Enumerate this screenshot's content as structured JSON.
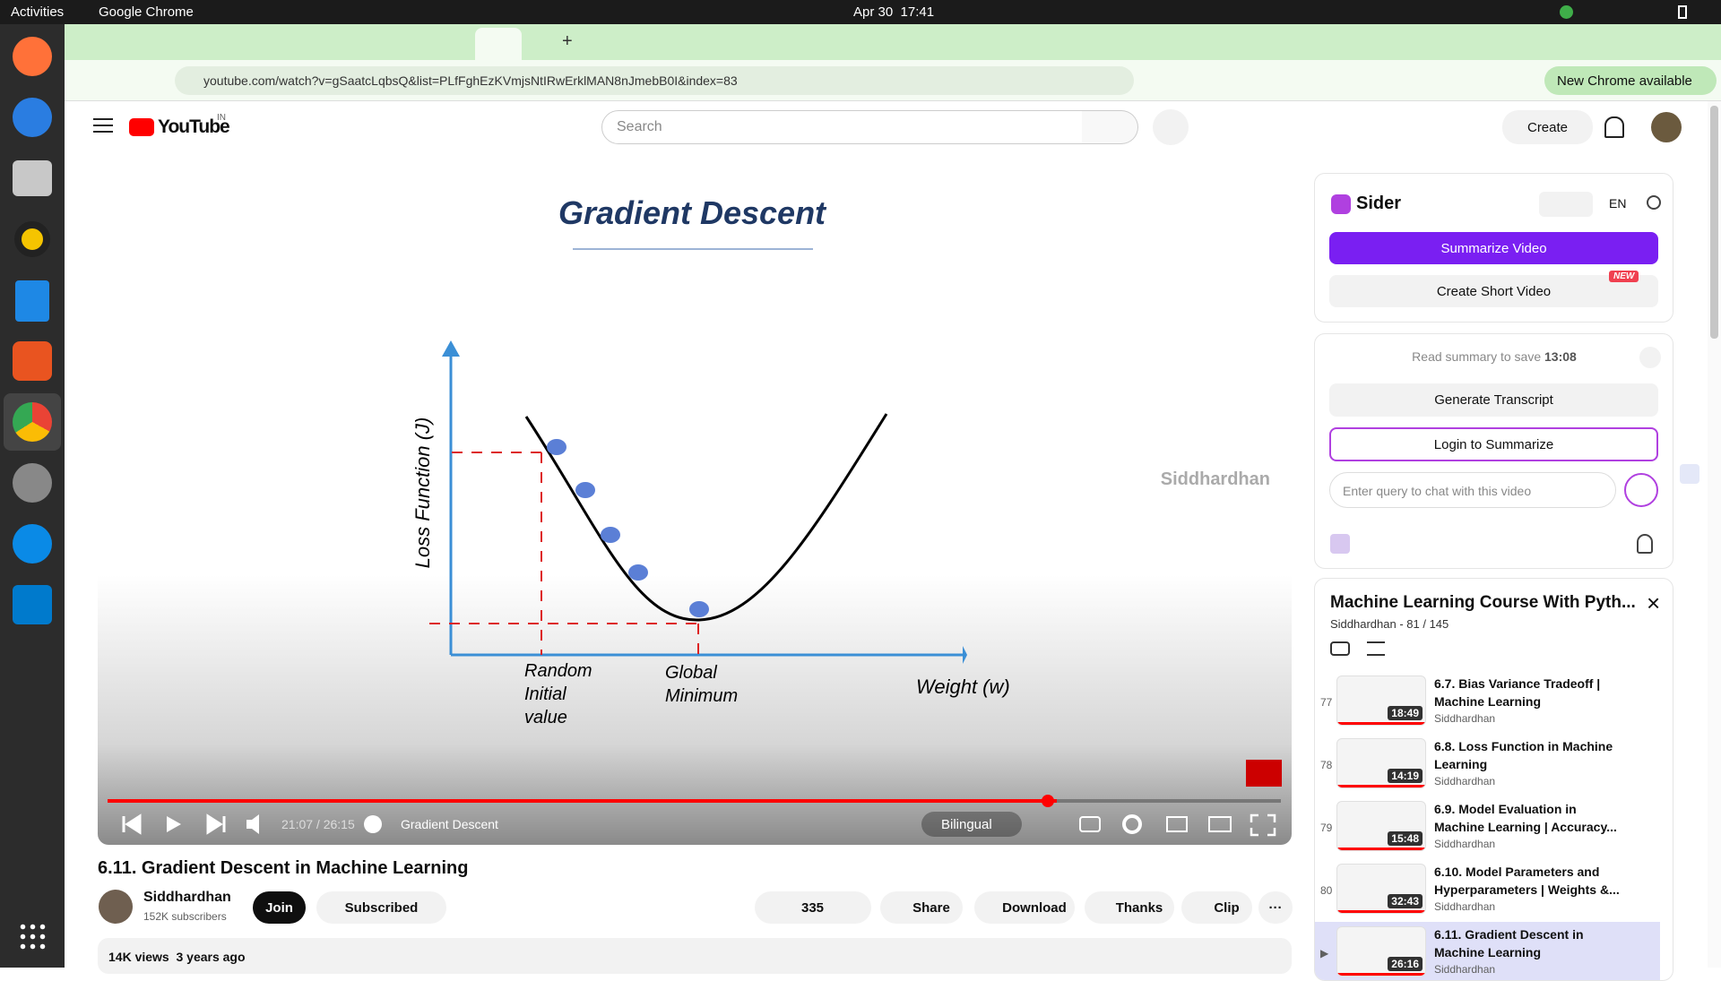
{
  "system_bar": {
    "activities": "Activities",
    "app": "Google Chrome",
    "datetime": "Apr 30  17:41"
  },
  "browser": {
    "url": "youtube.com/watch?v=gSaatcLqbsQ&list=PLfFghEzKVmjsNtIRwErklMAN8nJmebB0I&index=83",
    "update": "New Chrome available"
  },
  "youtube": {
    "logo": "YouTube",
    "region": "IN",
    "search_placeholder": "Search",
    "create": "Create"
  },
  "video": {
    "slide_title": "Gradient Descent",
    "y_axis": "Loss Function (J)",
    "x_axis": "Weight (w)",
    "point_labels": [
      "Random Initial value",
      "Global Minimum"
    ],
    "watermark": "Siddhardhan",
    "time": "21:07 / 26:15",
    "chapter": "Gradient Descent",
    "bilingual": "Bilingual"
  },
  "title": "6.11. Gradient Descent in Machine Learning",
  "channel": {
    "name": "Siddhardhan",
    "subscribers": "152K subscribers",
    "join": "Join",
    "subscribed": "Subscribed"
  },
  "actions": {
    "likes": "335",
    "share": "Share",
    "download": "Download",
    "thanks": "Thanks",
    "clip": "Clip"
  },
  "stats": "14K views  3 years ago",
  "sider": {
    "name": "Sider",
    "lang": "EN",
    "summarize": "Summarize Video",
    "short_video": "Create Short Video",
    "badge": "NEW",
    "save_note": "Read summary to save",
    "save_time": "13:08",
    "transcript": "Generate Transcript",
    "login": "Login to Summarize",
    "query_placeholder": "Enter query to chat with this video"
  },
  "playlist": {
    "title": "Machine Learning Course With Pyth...",
    "meta": "Siddhardhan - 81 / 145",
    "items": [
      {
        "index": "77",
        "title": "6.7. Bias Variance Tradeoff | Machine Learning",
        "channel": "Siddhardhan",
        "duration": "18:49"
      },
      {
        "index": "78",
        "title": "6.8. Loss Function in Machine Learning",
        "channel": "Siddhardhan",
        "duration": "14:19"
      },
      {
        "index": "79",
        "title": "6.9. Model Evaluation in Machine Learning | Accuracy...",
        "channel": "Siddhardhan",
        "duration": "15:48"
      },
      {
        "index": "80",
        "title": "6.10. Model Parameters and Hyperparameters | Weights &...",
        "channel": "Siddhardhan",
        "duration": "32:43"
      },
      {
        "index": "▶",
        "title": "6.11. Gradient Descent in Machine Learning",
        "channel": "Siddhardhan",
        "duration": "26:16"
      }
    ]
  }
}
